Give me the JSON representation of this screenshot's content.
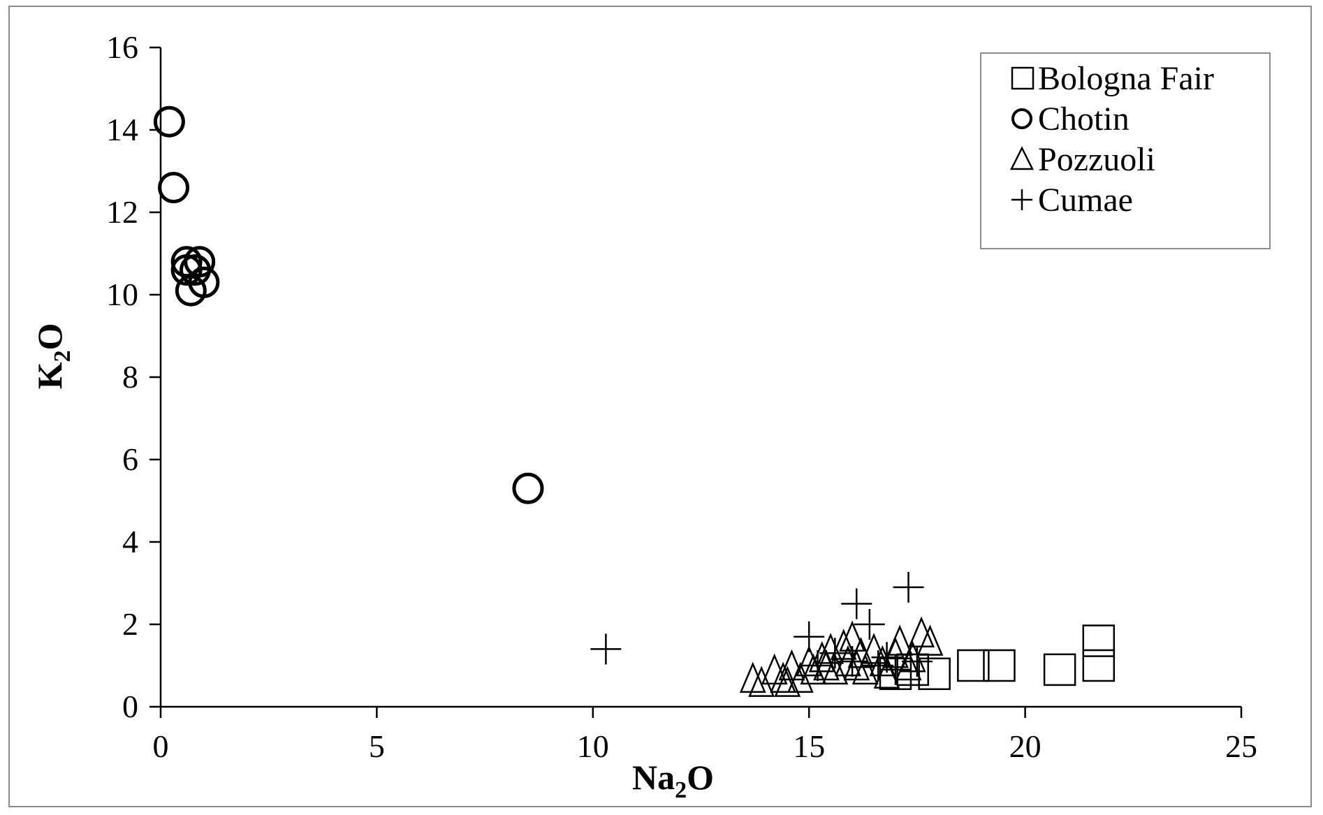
{
  "chart_data": {
    "type": "scatter",
    "xlabel": "Na2O",
    "ylabel": "K2O",
    "xlabel_main": "Na",
    "xlabel_sub": "2",
    "xlabel_tail": "O",
    "ylabel_main": "K",
    "ylabel_sub": "2",
    "ylabel_tail": "O",
    "xlim": [
      0,
      25
    ],
    "ylim": [
      0,
      16
    ],
    "xticks": [
      0,
      5,
      10,
      15,
      20,
      25
    ],
    "yticks": [
      0,
      2,
      4,
      6,
      8,
      10,
      12,
      14,
      16
    ],
    "legend_position": "top-right",
    "grid": false,
    "series": [
      {
        "name": "Bologna Fair",
        "marker": "square",
        "points": [
          [
            17.9,
            0.8
          ],
          [
            18.8,
            1.0
          ],
          [
            19.4,
            1.0
          ],
          [
            20.8,
            0.9
          ],
          [
            21.7,
            1.0
          ],
          [
            21.7,
            1.6
          ],
          [
            17.0,
            0.8
          ],
          [
            17.4,
            0.9
          ]
        ]
      },
      {
        "name": "Chotin",
        "marker": "circle",
        "points": [
          [
            0.2,
            14.2
          ],
          [
            0.3,
            12.6
          ],
          [
            0.6,
            10.8
          ],
          [
            0.8,
            10.6
          ],
          [
            0.9,
            10.8
          ],
          [
            1.0,
            10.3
          ],
          [
            0.7,
            10.1
          ],
          [
            0.6,
            10.6
          ],
          [
            8.5,
            5.3
          ]
        ]
      },
      {
        "name": "Pozzuoli",
        "marker": "triangle",
        "points": [
          [
            13.7,
            0.7
          ],
          [
            13.9,
            0.6
          ],
          [
            14.2,
            0.9
          ],
          [
            14.4,
            0.7
          ],
          [
            14.6,
            1.0
          ],
          [
            14.8,
            0.7
          ],
          [
            15.0,
            1.1
          ],
          [
            15.1,
            0.9
          ],
          [
            15.3,
            1.2
          ],
          [
            15.5,
            1.4
          ],
          [
            15.6,
            0.9
          ],
          [
            15.8,
            1.5
          ],
          [
            15.9,
            1.1
          ],
          [
            16.0,
            1.7
          ],
          [
            16.2,
            1.3
          ],
          [
            16.3,
            0.9
          ],
          [
            16.5,
            1.4
          ],
          [
            16.7,
            1.1
          ],
          [
            16.8,
            0.8
          ],
          [
            17.0,
            1.3
          ],
          [
            17.1,
            1.6
          ],
          [
            17.3,
            1.0
          ],
          [
            17.4,
            1.2
          ],
          [
            17.6,
            1.8
          ],
          [
            17.8,
            1.6
          ],
          [
            16.1,
            1.0
          ],
          [
            15.4,
            1.0
          ],
          [
            14.5,
            0.6
          ]
        ]
      },
      {
        "name": "Cumae",
        "marker": "plus",
        "points": [
          [
            10.3,
            1.4
          ],
          [
            16.1,
            2.5
          ],
          [
            16.4,
            2.0
          ],
          [
            17.3,
            2.9
          ],
          [
            15.0,
            1.7
          ],
          [
            15.6,
            1.3
          ],
          [
            16.0,
            1.1
          ],
          [
            16.6,
            1.0
          ],
          [
            17.0,
            0.9
          ],
          [
            17.5,
            1.1
          ],
          [
            15.2,
            1.0
          ],
          [
            16.8,
            1.2
          ]
        ]
      }
    ]
  }
}
